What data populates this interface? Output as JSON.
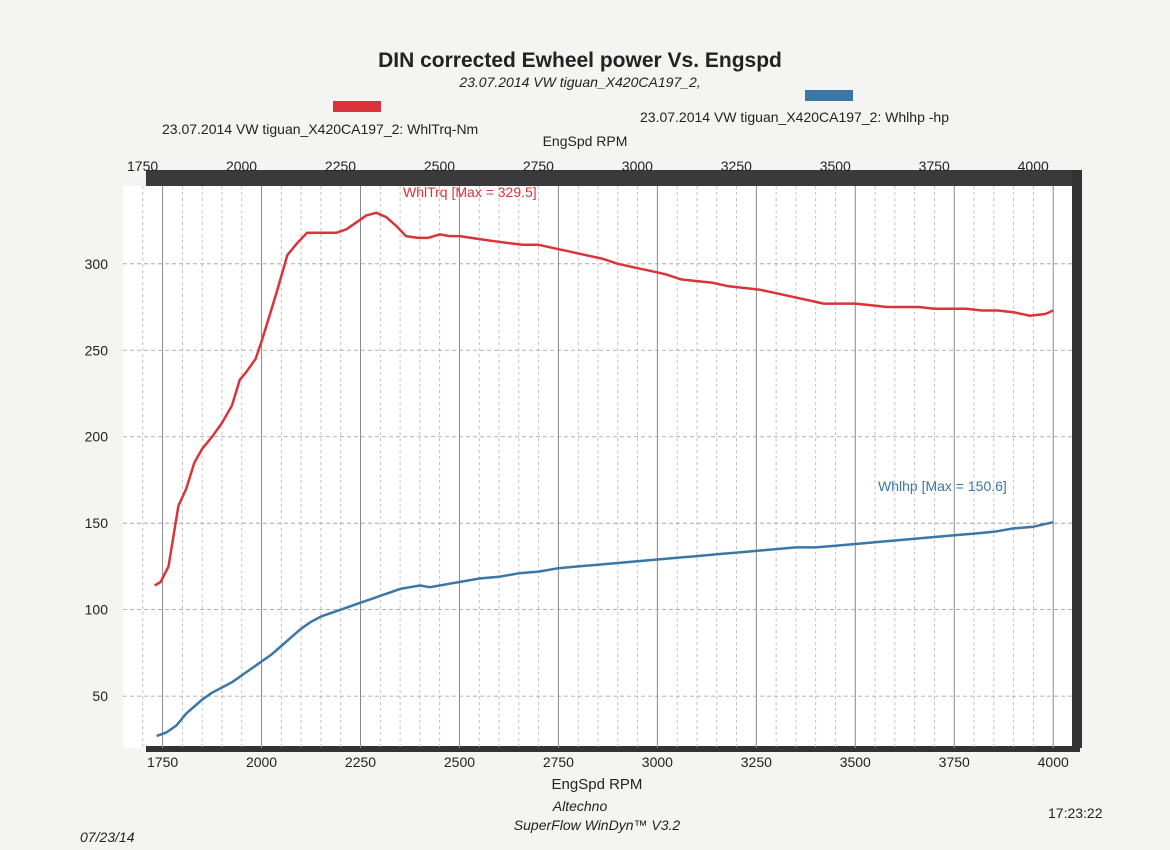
{
  "chart_data": {
    "type": "line",
    "title": "DIN corrected Ewheel power Vs. Engspd",
    "subtitle": "23.07.2014 VW tiguan_X420CA197_2,",
    "xlabel": "EngSpd RPM",
    "xlabel_top": "EngSpd RPM",
    "xlim": [
      1650,
      4050
    ],
    "ylim": [
      20,
      345
    ],
    "x_ticks": [
      1750,
      2000,
      2250,
      2500,
      2750,
      3000,
      3250,
      3500,
      3750,
      4000
    ],
    "x_tick_labels": [
      "1750",
      "2000",
      "2250",
      "2500",
      "2750",
      "3000",
      "3250",
      "3500",
      "3750",
      "4000"
    ],
    "y_ticks": [
      50,
      100,
      150,
      200,
      250,
      300
    ],
    "y_tick_labels": [
      "50",
      "100",
      "150",
      "200",
      "250",
      "300"
    ],
    "grid": true,
    "legend_position": "top",
    "series": [
      {
        "name": "23.07.2014 VW tiguan_X420CA197_2: WhlTrq-Nm",
        "short_name": "WhlTrq",
        "color": "#d9343b",
        "annotation": "WhlTrq [Max = 329.5]",
        "x": [
          1730,
          1745,
          1765,
          1790,
          1810,
          1830,
          1850,
          1875,
          1900,
          1925,
          1945,
          1960,
          1985,
          2000,
          2020,
          2040,
          2065,
          2090,
          2115,
          2140,
          2165,
          2190,
          2215,
          2240,
          2265,
          2290,
          2315,
          2340,
          2365,
          2395,
          2420,
          2450,
          2475,
          2500,
          2530,
          2560,
          2590,
          2625,
          2660,
          2700,
          2740,
          2780,
          2820,
          2860,
          2900,
          2940,
          2980,
          3020,
          3060,
          3100,
          3140,
          3180,
          3220,
          3260,
          3300,
          3340,
          3380,
          3420,
          3460,
          3500,
          3540,
          3580,
          3620,
          3660,
          3700,
          3740,
          3780,
          3820,
          3860,
          3900,
          3940,
          3980,
          4000
        ],
        "values": [
          114,
          116,
          125,
          160,
          170,
          185,
          193,
          200,
          208,
          218,
          233,
          237,
          245,
          255,
          270,
          285,
          305,
          312,
          318,
          318,
          318,
          318,
          320,
          324,
          328,
          329.5,
          327,
          322,
          316,
          315,
          315,
          317,
          316,
          316,
          315,
          314,
          313,
          312,
          311,
          311,
          309,
          307,
          305,
          303,
          300,
          298,
          296,
          294,
          291,
          290,
          289,
          287,
          286,
          285,
          283,
          281,
          279,
          277,
          277,
          277,
          276,
          275,
          275,
          275,
          274,
          274,
          274,
          273,
          273,
          272,
          270,
          271,
          273
        ]
      },
      {
        "name": "23.07.2014 VW tiguan_X420CA197_2: Whlhp -hp",
        "short_name": "Whlhp",
        "color": "#3a77a6",
        "annotation": "Whlhp  [Max = 150.6]",
        "x": [
          1735,
          1760,
          1785,
          1810,
          1830,
          1850,
          1875,
          1900,
          1925,
          1950,
          1975,
          2000,
          2025,
          2050,
          2075,
          2100,
          2125,
          2150,
          2175,
          2200,
          2225,
          2250,
          2275,
          2300,
          2325,
          2350,
          2375,
          2400,
          2425,
          2450,
          2475,
          2500,
          2550,
          2600,
          2650,
          2700,
          2750,
          2800,
          2850,
          2900,
          2950,
          3000,
          3050,
          3100,
          3150,
          3200,
          3250,
          3300,
          3350,
          3400,
          3450,
          3500,
          3550,
          3600,
          3650,
          3700,
          3750,
          3800,
          3850,
          3900,
          3950,
          4000
        ],
        "values": [
          27,
          29,
          33,
          40,
          44,
          48,
          52,
          55,
          58,
          62,
          66,
          70,
          74,
          79,
          84,
          89,
          93,
          96,
          98,
          100,
          102,
          104,
          106,
          108,
          110,
          112,
          113,
          114,
          113,
          114,
          115,
          116,
          118,
          119,
          121,
          122,
          124,
          125,
          126,
          127,
          128,
          129,
          130,
          131,
          132,
          133,
          134,
          135,
          136,
          136,
          137,
          138,
          139,
          140,
          141,
          142,
          143,
          144,
          145,
          147,
          148,
          150.6
        ]
      }
    ]
  },
  "footer": {
    "vendor": "Altechno",
    "software": "SuperFlow WinDyn™ V3.2",
    "date": "07/23/14",
    "time": "17:23:22"
  }
}
